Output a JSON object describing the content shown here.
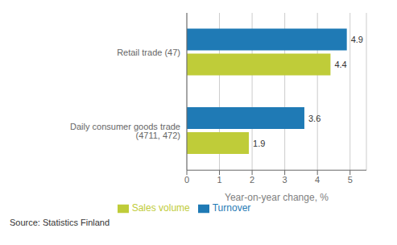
{
  "chart_data": {
    "type": "bar",
    "orientation": "horizontal",
    "categories": [
      "Daily consumer goods trade (4711, 472)",
      "Retail trade (47)"
    ],
    "series": [
      {
        "name": "Turnover",
        "color": "#1f7ab5",
        "values": [
          3.6,
          4.9
        ]
      },
      {
        "name": "Sales volume",
        "color": "#bfcc39",
        "values": [
          1.9,
          4.4
        ]
      }
    ],
    "xlabel": "Year-on-year change, %",
    "xlim": [
      0,
      5.5
    ],
    "xticks": [
      0,
      1,
      2,
      3,
      4,
      5
    ],
    "grid": true,
    "legend": "bottom",
    "data_labels": true,
    "annotations": [
      "Source: Statistics Finland"
    ]
  }
}
